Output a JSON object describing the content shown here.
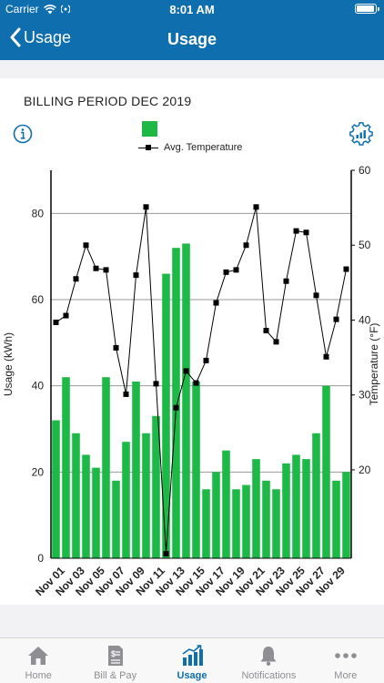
{
  "status_bar": {
    "carrier": "Carrier",
    "time": "8:01 AM"
  },
  "nav": {
    "back_label": "Usage",
    "title": "Usage"
  },
  "billing": {
    "title": "BILLING PERIOD DEC 2019"
  },
  "legend": {
    "temperature_label": "Avg. Temperature",
    "usage_color": "#1db947",
    "temperature_color": "#000000"
  },
  "icons": {
    "info": "info-icon",
    "settings": "gear-chart-icon"
  },
  "chart_data": {
    "type": "bar",
    "categories": [
      "Nov 01",
      "Nov 02",
      "Nov 03",
      "Nov 04",
      "Nov 05",
      "Nov 06",
      "Nov 07",
      "Nov 08",
      "Nov 09",
      "Nov 10",
      "Nov 11",
      "Nov 12",
      "Nov 13",
      "Nov 14",
      "Nov 15",
      "Nov 16",
      "Nov 17",
      "Nov 18",
      "Nov 19",
      "Nov 20",
      "Nov 21",
      "Nov 22",
      "Nov 23",
      "Nov 24",
      "Nov 25",
      "Nov 26",
      "Nov 27",
      "Nov 28",
      "Nov 29",
      "Nov 30"
    ],
    "tick_labels": [
      "Nov 01",
      "Nov 03",
      "Nov 05",
      "Nov 07",
      "Nov 09",
      "Nov 11",
      "Nov 13",
      "Nov 15",
      "Nov 17",
      "Nov 19",
      "Nov 21",
      "Nov 23",
      "Nov 25",
      "Nov 27",
      "Nov 29"
    ],
    "series": [
      {
        "type": "bar",
        "axis": "left",
        "values": [
          32,
          42,
          29,
          24,
          21,
          42,
          18,
          27,
          41,
          29,
          33,
          66,
          72,
          73,
          41,
          16,
          20,
          25,
          16,
          17,
          23,
          18,
          16,
          22,
          24,
          23,
          29,
          40,
          18,
          20
        ]
      },
      {
        "type": "line",
        "axis": "right",
        "name": "Avg. Temperature",
        "values": [
          39.7,
          40.6,
          45.5,
          50.0,
          46.9,
          46.7,
          36.3,
          30.1,
          46.0,
          55.1,
          31.5,
          8.8,
          28.3,
          33.2,
          31.6,
          34.6,
          42.3,
          46.4,
          46.7,
          50.0,
          55.1,
          38.6,
          37.1,
          45.2,
          51.9,
          51.7,
          43.3,
          35.1,
          40.1,
          46.8
        ]
      }
    ],
    "ylabel": "Usage (kWh)",
    "y2label": "Temperature (°F)",
    "ylim": [
      0,
      90
    ],
    "y_ticks": [
      0,
      20,
      40,
      60,
      80
    ],
    "y2lim": [
      8.2,
      60
    ],
    "y2_ticks": [
      20,
      30,
      40,
      50,
      60
    ],
    "grid": true
  },
  "tabs": [
    {
      "label": "Home",
      "icon": "home-icon",
      "active": false
    },
    {
      "label": "Bill & Pay",
      "icon": "bill-icon",
      "active": false
    },
    {
      "label": "Usage",
      "icon": "usage-chart-icon",
      "active": true
    },
    {
      "label": "Notifications",
      "icon": "bell-icon",
      "active": false
    },
    {
      "label": "More",
      "icon": "more-dots-icon",
      "active": false
    }
  ]
}
